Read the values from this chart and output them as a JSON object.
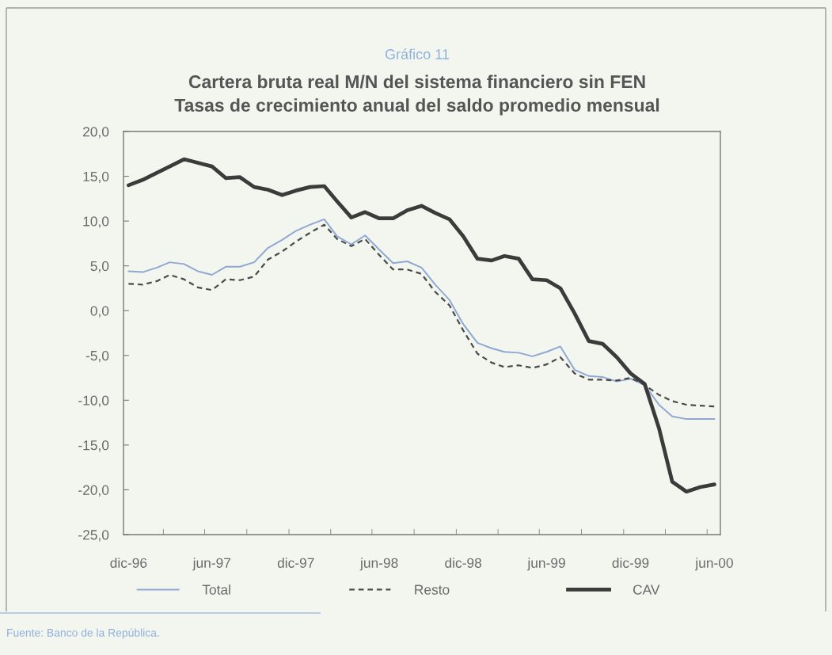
{
  "chart_data": {
    "type": "line",
    "title": "Gráfico 11",
    "subtitle": "Cartera bruta real M/N del sistema financiero sin FEN\nTasas de crecimiento anual del saldo promedio mensual",
    "x": [
      "1996-12",
      "1997-01",
      "1997-02",
      "1997-03",
      "1997-04",
      "1997-05",
      "1997-06",
      "1997-07",
      "1997-08",
      "1997-09",
      "1997-10",
      "1997-11",
      "1997-12",
      "1998-01",
      "1998-02",
      "1998-03",
      "1998-04",
      "1998-05",
      "1998-06",
      "1998-07",
      "1998-08",
      "1998-09",
      "1998-10",
      "1998-11",
      "1998-12",
      "1999-01",
      "1999-02",
      "1999-03",
      "1999-04",
      "1999-05",
      "1999-06",
      "1999-07",
      "1999-08",
      "1999-09",
      "1999-10",
      "1999-11",
      "1999-12",
      "2000-01",
      "2000-02",
      "2000-03",
      "2000-04",
      "2000-05",
      "2000-06"
    ],
    "series": [
      {
        "name": "Total",
        "color": "#8fa8d2",
        "line_style": "solid",
        "values": [
          4.4,
          4.3,
          4.8,
          5.4,
          5.2,
          4.4,
          4.0,
          4.9,
          4.9,
          5.4,
          7.0,
          7.9,
          8.9,
          9.6,
          10.2,
          8.3,
          7.4,
          8.4,
          6.8,
          5.3,
          5.5,
          4.8,
          2.9,
          1.2,
          -1.5,
          -3.6,
          -4.2,
          -4.6,
          -4.7,
          -5.1,
          -4.6,
          -4.0,
          -6.6,
          -7.3,
          -7.4,
          -7.9,
          -7.6,
          -8.3,
          -10.5,
          -11.8,
          -12.1,
          -12.1,
          -12.1
        ]
      },
      {
        "name": "Resto",
        "color": "#4a4a4a",
        "line_style": "dashed",
        "values": [
          3.0,
          2.9,
          3.3,
          4.0,
          3.5,
          2.6,
          2.3,
          3.5,
          3.4,
          3.8,
          5.7,
          6.6,
          7.7,
          8.7,
          9.6,
          8.0,
          7.2,
          8.0,
          6.2,
          4.6,
          4.6,
          4.1,
          2.1,
          0.6,
          -2.2,
          -4.8,
          -5.8,
          -6.3,
          -6.1,
          -6.4,
          -6.0,
          -5.2,
          -7.0,
          -7.7,
          -7.7,
          -7.8,
          -7.5,
          -8.3,
          -9.4,
          -10.1,
          -10.5,
          -10.6,
          -10.7
        ]
      },
      {
        "name": "CAV",
        "color": "#3b3b3b",
        "line_style": "solid",
        "values": [
          14.0,
          14.6,
          15.4,
          16.1,
          16.9,
          16.5,
          16.1,
          14.8,
          14.9,
          13.8,
          13.5,
          12.9,
          13.4,
          13.8,
          13.9,
          12.2,
          10.4,
          11.0,
          10.3,
          10.3,
          11.2,
          11.7,
          10.9,
          10.2,
          8.3,
          5.8,
          5.6,
          6.1,
          5.8,
          3.5,
          3.4,
          2.5,
          -0.3,
          -3.4,
          -3.7,
          -5.2,
          -7.0,
          -8.2,
          -13.1,
          -19.1,
          -20.2,
          -19.7,
          -19.4
        ]
      }
    ],
    "xlim": [
      "1996-11-20",
      "2000-06-14"
    ],
    "xticks": [
      {
        "value": "1996-12",
        "label": "dic-96"
      },
      {
        "value": "1997-02-15",
        "label": null
      },
      {
        "value": "1997-05-16",
        "label": null
      },
      {
        "value": "1997-06",
        "label": "jun-97"
      },
      {
        "value": "1997-08-16",
        "label": null
      },
      {
        "value": "1997-11-16",
        "label": null
      },
      {
        "value": "1997-12",
        "label": "dic-97"
      },
      {
        "value": "1998-02-15",
        "label": null
      },
      {
        "value": "1998-05-16",
        "label": null
      },
      {
        "value": "1998-06",
        "label": "jun-98"
      },
      {
        "value": "1998-08-16",
        "label": null
      },
      {
        "value": "1998-11-16",
        "label": null
      },
      {
        "value": "1998-12",
        "label": "dic-98"
      },
      {
        "value": "1999-02-15",
        "label": null
      },
      {
        "value": "1999-05-16",
        "label": null
      },
      {
        "value": "1999-06",
        "label": "jun-99"
      },
      {
        "value": "1999-08-16",
        "label": null
      },
      {
        "value": "1999-11-16",
        "label": null
      },
      {
        "value": "1999-12",
        "label": "dic-99"
      },
      {
        "value": "2000-02-15",
        "label": null
      },
      {
        "value": "2000-05-16",
        "label": null
      },
      {
        "value": "2000-06",
        "label": "jun-00"
      }
    ],
    "ylim": [
      -25,
      20
    ],
    "yticks": [
      {
        "value": 20,
        "label": "20,0"
      },
      {
        "value": 15,
        "label": "15,0"
      },
      {
        "value": 10,
        "label": "10,0"
      },
      {
        "value": 5,
        "label": "5,0"
      },
      {
        "value": 0,
        "label": "0,0"
      },
      {
        "value": -5,
        "label": "-5,0"
      },
      {
        "value": -10,
        "label": "-10,0"
      },
      {
        "value": -15,
        "label": "-15,0"
      },
      {
        "value": -20,
        "label": "-20,0"
      },
      {
        "value": -25,
        "label": "-25,0"
      }
    ],
    "legend": "bottom",
    "annotations": [
      "Fuente: Banco de la República."
    ]
  }
}
